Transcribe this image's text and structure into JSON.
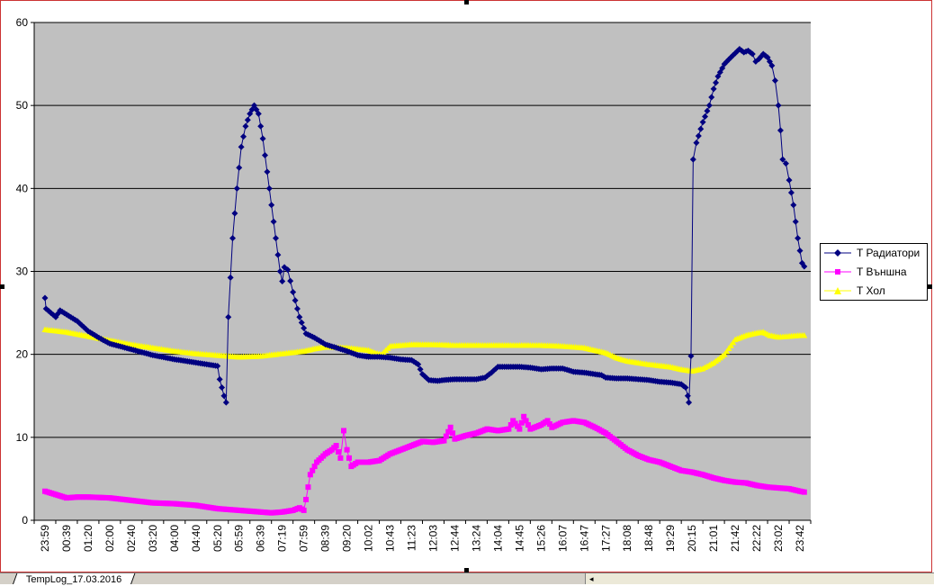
{
  "sheet_tab": "TempLog_17.03.2016",
  "icons": {
    "scroll_left": "scroll-left-arrow-icon"
  },
  "colors": {
    "plot_bg": "#c0c0c0",
    "radiator": "#000080",
    "outdoor": "#ff00ff",
    "hall": "#ffff00",
    "frame": "#cc3333"
  },
  "chart_data": {
    "type": "line",
    "title": "",
    "xlabel": "",
    "ylabel": "",
    "ylim": [
      0,
      60
    ],
    "yticks": [
      0,
      10,
      20,
      30,
      40,
      50,
      60
    ],
    "grid": true,
    "legend_position": "right",
    "x_tick_labels": [
      "23:59",
      "00:39",
      "01:20",
      "02:00",
      "02:40",
      "03:20",
      "04:00",
      "04:40",
      "05:20",
      "05:59",
      "06:39",
      "07:19",
      "07:59",
      "08:39",
      "09:20",
      "10:02",
      "10:43",
      "11:23",
      "12:03",
      "12:44",
      "13:24",
      "14:04",
      "14:45",
      "15:26",
      "16:07",
      "16:47",
      "17:27",
      "18:08",
      "18:48",
      "19:29",
      "20:15",
      "21:01",
      "21:42",
      "22:22",
      "23:02",
      "23:42"
    ],
    "series": [
      {
        "name": "T Радиатори",
        "color": "#000080",
        "marker": "diamond",
        "points": [
          [
            0,
            26.8
          ],
          [
            0.05,
            25.5
          ],
          [
            0.5,
            24.5
          ],
          [
            0.7,
            25.3
          ],
          [
            1,
            24.8
          ],
          [
            1.5,
            24
          ],
          [
            2,
            22.8
          ],
          [
            2.5,
            22
          ],
          [
            3,
            21.3
          ],
          [
            4,
            20.6
          ],
          [
            5,
            19.9
          ],
          [
            6,
            19.4
          ],
          [
            7,
            19
          ],
          [
            8,
            18.6
          ],
          [
            8.1,
            17
          ],
          [
            8.3,
            15
          ],
          [
            8.4,
            14.2
          ],
          [
            8.5,
            24.5
          ],
          [
            8.7,
            34
          ],
          [
            8.9,
            40
          ],
          [
            9.1,
            45
          ],
          [
            9.3,
            47.5
          ],
          [
            9.5,
            49
          ],
          [
            9.7,
            50
          ],
          [
            9.9,
            49
          ],
          [
            10.1,
            46
          ],
          [
            10.3,
            42
          ],
          [
            10.5,
            38
          ],
          [
            10.7,
            34
          ],
          [
            10.9,
            30
          ],
          [
            11,
            28.8
          ],
          [
            11.1,
            30.5
          ],
          [
            11.25,
            30.2
          ],
          [
            11.5,
            27.5
          ],
          [
            11.8,
            24.5
          ],
          [
            12.1,
            22.5
          ],
          [
            12.5,
            22
          ],
          [
            13,
            21.2
          ],
          [
            13.5,
            20.8
          ],
          [
            14,
            20.4
          ],
          [
            14.5,
            19.9
          ],
          [
            15,
            19.7
          ],
          [
            15.5,
            19.7
          ],
          [
            16,
            19.6
          ],
          [
            16.5,
            19.4
          ],
          [
            17,
            19.3
          ],
          [
            17.3,
            18.8
          ],
          [
            17.5,
            17.6
          ],
          [
            17.8,
            16.9
          ],
          [
            18.2,
            16.8
          ],
          [
            18.5,
            16.9
          ],
          [
            19,
            17
          ],
          [
            19.5,
            17
          ],
          [
            20,
            17
          ],
          [
            20.4,
            17.2
          ],
          [
            20.7,
            17.8
          ],
          [
            21,
            18.5
          ],
          [
            21.5,
            18.5
          ],
          [
            22,
            18.5
          ],
          [
            22.5,
            18.4
          ],
          [
            23,
            18.2
          ],
          [
            23.5,
            18.3
          ],
          [
            24,
            18.3
          ],
          [
            24.5,
            17.9
          ],
          [
            25,
            17.8
          ],
          [
            25.5,
            17.6
          ],
          [
            25.8,
            17.5
          ],
          [
            26,
            17.2
          ],
          [
            26.5,
            17.1
          ],
          [
            27,
            17.1
          ],
          [
            27.5,
            17
          ],
          [
            28,
            16.9
          ],
          [
            28.5,
            16.7
          ],
          [
            29,
            16.6
          ],
          [
            29.5,
            16.4
          ],
          [
            29.7,
            16
          ],
          [
            29.8,
            15
          ],
          [
            29.85,
            14.2
          ],
          [
            29.95,
            19.8
          ],
          [
            30.05,
            43.5
          ],
          [
            30.2,
            45.5
          ],
          [
            30.5,
            48
          ],
          [
            30.8,
            50
          ],
          [
            31,
            52
          ],
          [
            31.2,
            53.5
          ],
          [
            31.5,
            55
          ],
          [
            31.8,
            55.8
          ],
          [
            32,
            56.3
          ],
          [
            32.2,
            56.8
          ],
          [
            32.4,
            56.4
          ],
          [
            32.6,
            56.6
          ],
          [
            32.8,
            56.2
          ],
          [
            32.95,
            55.3
          ],
          [
            33.1,
            55.6
          ],
          [
            33.3,
            56.2
          ],
          [
            33.5,
            55.8
          ],
          [
            33.7,
            54.8
          ],
          [
            33.85,
            53
          ],
          [
            34,
            50
          ],
          [
            34.1,
            47
          ],
          [
            34.2,
            43.5
          ],
          [
            34.35,
            43
          ],
          [
            34.5,
            41
          ],
          [
            34.7,
            38
          ],
          [
            34.9,
            34
          ],
          [
            35.1,
            31
          ],
          [
            35.2,
            30.6
          ]
        ]
      },
      {
        "name": "T Външна",
        "color": "#ff00ff",
        "marker": "square",
        "points": [
          [
            0,
            3.5
          ],
          [
            1,
            2.7
          ],
          [
            1.5,
            2.8
          ],
          [
            2,
            2.8
          ],
          [
            3,
            2.7
          ],
          [
            4,
            2.4
          ],
          [
            5,
            2.1
          ],
          [
            6,
            2
          ],
          [
            7,
            1.8
          ],
          [
            8,
            1.4
          ],
          [
            9,
            1.2
          ],
          [
            10,
            1
          ],
          [
            10.5,
            0.9
          ],
          [
            11,
            1
          ],
          [
            11.5,
            1.2
          ],
          [
            11.8,
            1.5
          ],
          [
            12,
            1.2
          ],
          [
            12.1,
            2.5
          ],
          [
            12.3,
            5.5
          ],
          [
            12.6,
            7
          ],
          [
            13,
            8
          ],
          [
            13.3,
            8.5
          ],
          [
            13.5,
            9
          ],
          [
            13.7,
            7.5
          ],
          [
            13.85,
            10.8
          ],
          [
            14,
            8.5
          ],
          [
            14.2,
            6.5
          ],
          [
            14.5,
            7
          ],
          [
            15,
            7
          ],
          [
            15.5,
            7.2
          ],
          [
            16,
            8
          ],
          [
            16.5,
            8.5
          ],
          [
            17,
            9
          ],
          [
            17.5,
            9.5
          ],
          [
            18,
            9.4
          ],
          [
            18.5,
            9.6
          ],
          [
            18.8,
            11.2
          ],
          [
            19,
            9.8
          ],
          [
            19.5,
            10.2
          ],
          [
            20,
            10.5
          ],
          [
            20.5,
            11
          ],
          [
            21,
            10.8
          ],
          [
            21.5,
            11
          ],
          [
            21.7,
            12
          ],
          [
            22,
            11
          ],
          [
            22.2,
            12.5
          ],
          [
            22.5,
            11
          ],
          [
            23,
            11.5
          ],
          [
            23.3,
            12
          ],
          [
            23.5,
            11.2
          ],
          [
            24,
            11.8
          ],
          [
            24.5,
            12
          ],
          [
            25,
            11.8
          ],
          [
            25.5,
            11.2
          ],
          [
            26,
            10.5
          ],
          [
            26.5,
            9.5
          ],
          [
            27,
            8.5
          ],
          [
            27.5,
            7.8
          ],
          [
            28,
            7.3
          ],
          [
            28.5,
            7
          ],
          [
            29,
            6.5
          ],
          [
            29.5,
            6
          ],
          [
            30,
            5.8
          ],
          [
            30.5,
            5.5
          ],
          [
            31,
            5.1
          ],
          [
            31.5,
            4.8
          ],
          [
            32,
            4.6
          ],
          [
            32.5,
            4.5
          ],
          [
            33,
            4.2
          ],
          [
            33.5,
            4
          ],
          [
            34,
            3.9
          ],
          [
            34.5,
            3.8
          ],
          [
            35,
            3.5
          ],
          [
            35.2,
            3.4
          ]
        ]
      },
      {
        "name": "T Хол",
        "color": "#ffff00",
        "marker": "triangle",
        "points": [
          [
            0,
            23
          ],
          [
            1,
            22.7
          ],
          [
            2,
            22.2
          ],
          [
            3,
            21.7
          ],
          [
            4,
            21.2
          ],
          [
            5,
            20.8
          ],
          [
            6,
            20.4
          ],
          [
            7,
            20.1
          ],
          [
            8,
            19.9
          ],
          [
            9,
            19.7
          ],
          [
            10,
            19.8
          ],
          [
            11,
            20.1
          ],
          [
            12,
            20.4
          ],
          [
            12.5,
            20.7
          ],
          [
            13,
            20.9
          ],
          [
            14,
            20.8
          ],
          [
            15,
            20.5
          ],
          [
            15.3,
            20.2
          ],
          [
            15.6,
            20
          ],
          [
            16,
            21
          ],
          [
            17,
            21.2
          ],
          [
            18,
            21.2
          ],
          [
            19,
            21.1
          ],
          [
            20,
            21.1
          ],
          [
            21,
            21.1
          ],
          [
            22,
            21.1
          ],
          [
            23,
            21.1
          ],
          [
            24,
            21
          ],
          [
            25,
            20.8
          ],
          [
            26,
            20.2
          ],
          [
            26.5,
            19.6
          ],
          [
            27,
            19.2
          ],
          [
            28,
            18.8
          ],
          [
            29,
            18.5
          ],
          [
            29.5,
            18.2
          ],
          [
            30,
            18
          ],
          [
            30.5,
            18.3
          ],
          [
            31,
            19
          ],
          [
            31.5,
            20
          ],
          [
            32,
            21.8
          ],
          [
            32.5,
            22.3
          ],
          [
            33,
            22.6
          ],
          [
            33.3,
            22.7
          ],
          [
            33.6,
            22.3
          ],
          [
            34,
            22.1
          ],
          [
            35,
            22.3
          ],
          [
            35.2,
            22.3
          ]
        ]
      }
    ]
  }
}
